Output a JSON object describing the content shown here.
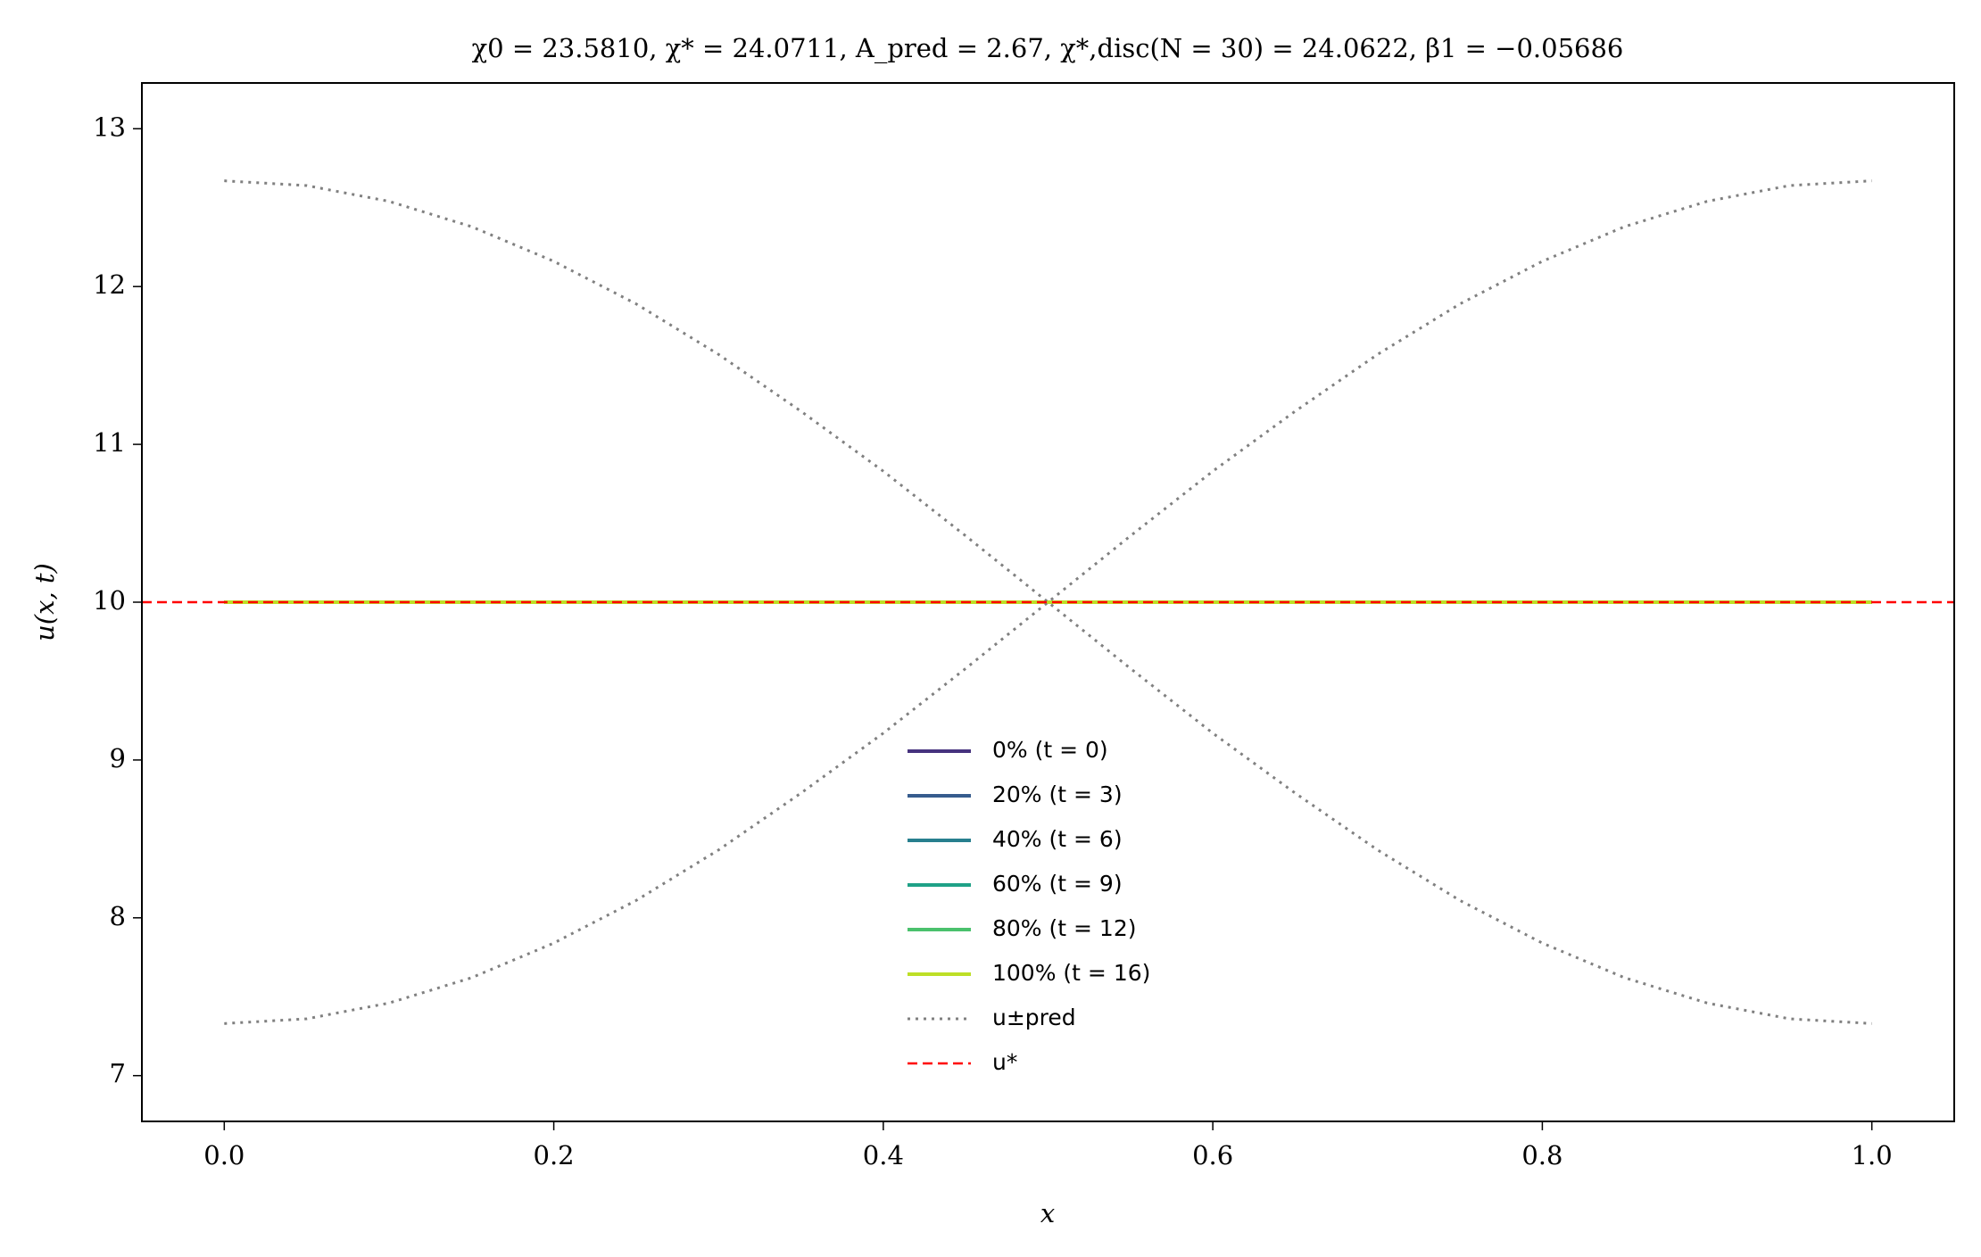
{
  "chart_data": {
    "type": "line",
    "title": "χ0 = 23.5810,  χ* = 24.0711,  A_pred = 2.67,  χ*,disc(N = 30) = 24.0622,  β1 = −0.05686",
    "x_label": "x",
    "y_label": "u(x, t)",
    "x": [
      0,
      0.05,
      0.1,
      0.15,
      0.2,
      0.25,
      0.3,
      0.35,
      0.4,
      0.45,
      0.5,
      0.55,
      0.6,
      0.65,
      0.7,
      0.75,
      0.8,
      0.85,
      0.9,
      0.95,
      1.0
    ],
    "series": [
      {
        "name": "0% (t = 0)",
        "color": "#46327e",
        "style": "solid",
        "values": [
          10,
          10,
          10,
          10,
          10,
          10,
          10,
          10,
          10,
          10,
          10,
          10,
          10,
          10,
          10,
          10,
          10,
          10,
          10,
          10,
          10
        ]
      },
      {
        "name": "20% (t = 3)",
        "color": "#365c8d",
        "style": "solid",
        "values": [
          10,
          10,
          10,
          10,
          10,
          10,
          10,
          10,
          10,
          10,
          10,
          10,
          10,
          10,
          10,
          10,
          10,
          10,
          10,
          10,
          10
        ]
      },
      {
        "name": "40% (t = 6)",
        "color": "#277f8e",
        "style": "solid",
        "values": [
          10,
          10,
          10,
          10,
          10,
          10,
          10,
          10,
          10,
          10,
          10,
          10,
          10,
          10,
          10,
          10,
          10,
          10,
          10,
          10,
          10
        ]
      },
      {
        "name": "60% (t = 9)",
        "color": "#1fa187",
        "style": "solid",
        "values": [
          10,
          10,
          10,
          10,
          10,
          10,
          10,
          10,
          10,
          10,
          10,
          10,
          10,
          10,
          10,
          10,
          10,
          10,
          10,
          10,
          10
        ]
      },
      {
        "name": "80% (t = 12)",
        "color": "#4ac16d",
        "style": "solid",
        "values": [
          10,
          10,
          10,
          10,
          10,
          10,
          10,
          10,
          10,
          10,
          10,
          10,
          10,
          10,
          10,
          10,
          10,
          10,
          10,
          10,
          10
        ]
      },
      {
        "name": "100% (t = 16)",
        "color": "#bddf26",
        "style": "solid",
        "values": [
          10,
          10,
          10,
          10,
          10,
          10,
          10,
          10,
          10,
          10,
          10,
          10,
          10,
          10,
          10,
          10,
          10,
          10,
          10,
          10,
          10
        ]
      },
      {
        "name": "u±pred",
        "color": "#808080",
        "style": "dotted",
        "values": [
          12.67,
          12.64,
          12.54,
          12.38,
          12.16,
          11.89,
          11.57,
          11.21,
          10.83,
          10.42,
          10.0,
          9.58,
          9.17,
          8.79,
          8.43,
          8.11,
          7.84,
          7.62,
          7.46,
          7.36,
          7.33
        ]
      },
      {
        "color": "#808080",
        "style": "dotted",
        "values": [
          7.33,
          7.36,
          7.46,
          7.62,
          7.84,
          8.11,
          8.43,
          8.79,
          9.17,
          9.58,
          10.0,
          10.42,
          10.83,
          11.21,
          11.57,
          11.89,
          12.16,
          12.38,
          12.54,
          12.64,
          12.67
        ]
      }
    ],
    "reference_line": {
      "name": "u*",
      "value": 10,
      "color": "#ff0000",
      "style": "dashed"
    },
    "xlim": [
      -0.05,
      1.05
    ],
    "xticks": [
      {
        "value": 0,
        "label": "0.0"
      },
      {
        "value": 0.2,
        "label": "0.2"
      },
      {
        "value": 0.4,
        "label": "0.4"
      },
      {
        "value": 0.6,
        "label": "0.6"
      },
      {
        "value": 0.8,
        "label": "0.8"
      },
      {
        "value": 1,
        "label": "1.0"
      }
    ],
    "ylim": [
      6.71,
      13.29
    ],
    "yticks": [
      7,
      8,
      9,
      10,
      11,
      12,
      13
    ],
    "grid": false,
    "legend": "lower center"
  }
}
